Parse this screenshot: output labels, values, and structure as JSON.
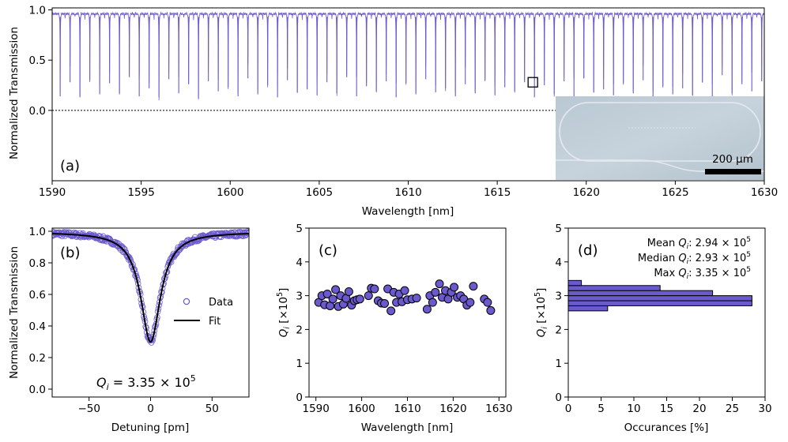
{
  "chart_data": [
    {
      "panel": "(a)",
      "type": "line",
      "xlabel": "Wavelength [nm]",
      "ylabel": "Normalized Transmission",
      "xlim": [
        1590,
        1630
      ],
      "ylim": [
        -0.7,
        1.02
      ],
      "xticks": [
        1590,
        1595,
        1600,
        1605,
        1610,
        1615,
        1620,
        1625,
        1630
      ],
      "yticks": [
        0.0,
        0.5,
        1.0
      ],
      "ytick_labels": [
        "0.0",
        "0.5",
        "1.0"
      ],
      "baseline": 0.98,
      "reference_line_y": 0.0,
      "fsr_nm": 0.555,
      "first_resonance_nm": 1590.45,
      "resonance_min_transmission": [
        0.14,
        0.28,
        0.13,
        0.3,
        0.16,
        0.27,
        0.17,
        0.33,
        0.14,
        0.22,
        0.13,
        0.31,
        0.17,
        0.26,
        0.12,
        0.29,
        0.19,
        0.23,
        0.14,
        0.32,
        0.16,
        0.25,
        0.13,
        0.3,
        0.18,
        0.21,
        0.15,
        0.28,
        0.17,
        0.33,
        0.14,
        0.24,
        0.19,
        0.29,
        0.13,
        0.27,
        0.16,
        0.31,
        0.18,
        0.22,
        0.14,
        0.26,
        0.17,
        0.3,
        0.15,
        0.23,
        0.19,
        0.28,
        0.13,
        0.25,
        0.16,
        0.29,
        0.14,
        0.32,
        0.18,
        0.21,
        0.15,
        0.27,
        0.17,
        0.3,
        0.14,
        0.24,
        0.16,
        0.22,
        0.15,
        0.28,
        0.13,
        0.35,
        0.17,
        0.26,
        0.19,
        0.29
      ],
      "highlighted_resonance_nm": 1617.0,
      "inset": {
        "type": "micrograph",
        "scale_bar_label": "200 µm"
      },
      "line_color": "#6a5acd"
    },
    {
      "panel": "(b)",
      "type": "scatter",
      "xlabel": "Detuning [pm]",
      "ylabel": "Normalized Transmission",
      "xlim": [
        -80,
        80
      ],
      "ylim": [
        -0.05,
        1.02
      ],
      "xticks": [
        -50,
        0,
        50
      ],
      "xtick_labels": [
        "−50",
        "0",
        "50"
      ],
      "yticks": [
        0.0,
        0.2,
        0.4,
        0.6,
        0.8,
        1.0
      ],
      "ytick_labels": [
        "0.0",
        "0.2",
        "0.4",
        "0.6",
        "0.8",
        "1.0"
      ],
      "fit": {
        "type": "lorentzian",
        "baseline": 0.995,
        "min": 0.3,
        "fwhm_pm": 19.5
      },
      "legend": [
        "Data",
        "Fit"
      ],
      "legend_position": "center-right",
      "annotation_prefix": "Q",
      "annotation_sub": "i",
      "annotation_value": " = 3.35 × 10",
      "annotation_exp": "5",
      "data_color": "#6a5acd",
      "fit_color": "#000000"
    },
    {
      "panel": "(c)",
      "type": "scatter",
      "xlabel": "Wavelength [nm]",
      "ylabel": "Q_i [×10^5]",
      "xlim": [
        1588.5,
        1631.5
      ],
      "ylim": [
        0,
        5
      ],
      "xticks": [
        1590,
        1600,
        1610,
        1620,
        1630
      ],
      "yticks": [
        0,
        1,
        2,
        3,
        4,
        5
      ],
      "points": [
        {
          "x": 1590.6,
          "y": 2.8
        },
        {
          "x": 1591.3,
          "y": 3.0
        },
        {
          "x": 1591.9,
          "y": 2.73
        },
        {
          "x": 1592.5,
          "y": 3.05
        },
        {
          "x": 1593.1,
          "y": 2.7
        },
        {
          "x": 1593.7,
          "y": 2.9
        },
        {
          "x": 1594.3,
          "y": 3.18
        },
        {
          "x": 1594.9,
          "y": 2.68
        },
        {
          "x": 1595.4,
          "y": 3.0
        },
        {
          "x": 1596.0,
          "y": 2.75
        },
        {
          "x": 1596.6,
          "y": 2.92
        },
        {
          "x": 1597.2,
          "y": 3.12
        },
        {
          "x": 1597.8,
          "y": 2.72
        },
        {
          "x": 1598.4,
          "y": 2.85
        },
        {
          "x": 1599.0,
          "y": 2.88
        },
        {
          "x": 1599.6,
          "y": 2.9
        },
        {
          "x": 1601.5,
          "y": 3.0
        },
        {
          "x": 1602.1,
          "y": 3.22
        },
        {
          "x": 1602.8,
          "y": 3.2
        },
        {
          "x": 1603.6,
          "y": 2.85
        },
        {
          "x": 1604.3,
          "y": 2.78
        },
        {
          "x": 1605.0,
          "y": 2.77
        },
        {
          "x": 1605.7,
          "y": 3.2
        },
        {
          "x": 1606.4,
          "y": 2.55
        },
        {
          "x": 1607.0,
          "y": 3.1
        },
        {
          "x": 1607.6,
          "y": 2.8
        },
        {
          "x": 1608.2,
          "y": 3.05
        },
        {
          "x": 1608.8,
          "y": 2.82
        },
        {
          "x": 1609.4,
          "y": 3.15
        },
        {
          "x": 1610.0,
          "y": 2.88
        },
        {
          "x": 1611.0,
          "y": 2.9
        },
        {
          "x": 1612.0,
          "y": 2.93
        },
        {
          "x": 1614.3,
          "y": 2.6
        },
        {
          "x": 1614.9,
          "y": 3.0
        },
        {
          "x": 1615.5,
          "y": 2.8
        },
        {
          "x": 1616.1,
          "y": 3.1
        },
        {
          "x": 1617.0,
          "y": 3.35
        },
        {
          "x": 1617.6,
          "y": 2.95
        },
        {
          "x": 1618.3,
          "y": 3.15
        },
        {
          "x": 1618.9,
          "y": 2.9
        },
        {
          "x": 1619.6,
          "y": 3.1
        },
        {
          "x": 1620.2,
          "y": 3.25
        },
        {
          "x": 1620.9,
          "y": 2.95
        },
        {
          "x": 1621.6,
          "y": 3.0
        },
        {
          "x": 1622.3,
          "y": 2.9
        },
        {
          "x": 1623.0,
          "y": 2.72
        },
        {
          "x": 1623.7,
          "y": 2.8
        },
        {
          "x": 1624.4,
          "y": 3.28
        },
        {
          "x": 1626.8,
          "y": 2.9
        },
        {
          "x": 1627.5,
          "y": 2.8
        },
        {
          "x": 1628.2,
          "y": 2.56
        }
      ],
      "point_color": "#6a5acd"
    },
    {
      "panel": "(d)",
      "type": "bar",
      "orientation": "horizontal",
      "xlabel": "Occurances [%]",
      "ylabel": "Q_i [×10^5]",
      "xlim": [
        0,
        30
      ],
      "ylim": [
        0,
        5
      ],
      "xticks": [
        0,
        5,
        10,
        15,
        20,
        25,
        30
      ],
      "yticks": [
        0,
        1,
        2,
        3,
        4,
        5
      ],
      "bins": [
        {
          "from": 2.55,
          "to": 2.7,
          "value": 6
        },
        {
          "from": 2.7,
          "to": 2.85,
          "value": 28
        },
        {
          "from": 2.85,
          "to": 3.0,
          "value": 28
        },
        {
          "from": 3.0,
          "to": 3.15,
          "value": 22
        },
        {
          "from": 3.15,
          "to": 3.3,
          "value": 14
        },
        {
          "from": 3.3,
          "to": 3.45,
          "value": 2
        }
      ],
      "stats": [
        {
          "prefix": "Mean ",
          "value": ": 2.94 × 10",
          "exp": "5"
        },
        {
          "prefix": "Median ",
          "value": ": 2.93 × 10",
          "exp": "5"
        },
        {
          "prefix": "Max ",
          "value": ": 3.35 × 10",
          "exp": "5"
        }
      ],
      "bar_color": "#6a5acd"
    }
  ]
}
